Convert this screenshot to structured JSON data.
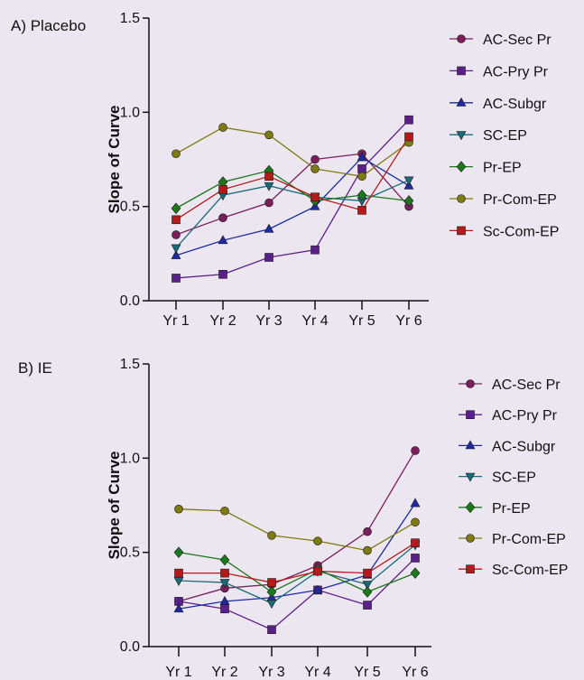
{
  "chart_data": [
    {
      "type": "line",
      "panel_label": "A) Placebo",
      "title": "",
      "xlabel": "",
      "ylabel": "Slope of Curve",
      "ylim": [
        0,
        1.5
      ],
      "yticks": [
        "0.0",
        "0.5",
        "1.0",
        "1.5"
      ],
      "categories": [
        "Yr 1",
        "Yr 2",
        "Yr 3",
        "Yr 4",
        "Yr 5",
        "Yr 6"
      ],
      "grid": false,
      "legend_position": "right",
      "series": [
        {
          "name": "AC-Sec Pr",
          "color": "#7a1f5c",
          "marker": "circle",
          "values": [
            0.35,
            0.44,
            0.52,
            0.75,
            0.78,
            0.5
          ]
        },
        {
          "name": "AC-Pry Pr",
          "color": "#5b1f8a",
          "marker": "square",
          "values": [
            0.12,
            0.14,
            0.23,
            0.27,
            0.7,
            0.96
          ]
        },
        {
          "name": "AC-Subgr",
          "color": "#1d2ba3",
          "marker": "triangle-up",
          "values": [
            0.24,
            0.32,
            0.38,
            0.5,
            0.76,
            0.61
          ]
        },
        {
          "name": "SC-EP",
          "color": "#1a6b7a",
          "marker": "triangle-down",
          "values": [
            0.28,
            0.56,
            0.61,
            0.55,
            0.53,
            0.64
          ]
        },
        {
          "name": "Pr-EP",
          "color": "#1a7a1a",
          "marker": "diamond",
          "values": [
            0.49,
            0.63,
            0.69,
            0.53,
            0.56,
            0.53
          ]
        },
        {
          "name": "Pr-Com-EP",
          "color": "#7d7a10",
          "marker": "circle",
          "values": [
            0.78,
            0.92,
            0.88,
            0.7,
            0.66,
            0.84
          ]
        },
        {
          "name": "Sc-Com-EP",
          "color": "#b51a1a",
          "marker": "square",
          "values": [
            0.43,
            0.59,
            0.66,
            0.55,
            0.48,
            0.87
          ]
        }
      ]
    },
    {
      "type": "line",
      "panel_label": "B) IE",
      "title": "",
      "xlabel": "",
      "ylabel": "Slope of Curve",
      "ylim": [
        0,
        1.5
      ],
      "yticks": [
        "0.0",
        "0.5",
        "1.0",
        "1.5"
      ],
      "categories": [
        "Yr 1",
        "Yr 2",
        "Yr 3",
        "Yr 4",
        "Yr 5",
        "Yr 6"
      ],
      "grid": false,
      "legend_position": "right",
      "series": [
        {
          "name": "AC-Sec Pr",
          "color": "#7a1f5c",
          "marker": "circle",
          "values": [
            0.24,
            0.31,
            0.33,
            0.43,
            0.61,
            1.04
          ]
        },
        {
          "name": "AC-Pry Pr",
          "color": "#5b1f8a",
          "marker": "square",
          "values": [
            0.24,
            0.2,
            0.09,
            0.3,
            0.22,
            0.47
          ]
        },
        {
          "name": "AC-Subgr",
          "color": "#1d2ba3",
          "marker": "triangle-up",
          "values": [
            0.2,
            0.24,
            0.26,
            0.3,
            0.38,
            0.76
          ]
        },
        {
          "name": "SC-EP",
          "color": "#1a6b7a",
          "marker": "triangle-down",
          "values": [
            0.35,
            0.34,
            0.23,
            0.4,
            0.33,
            0.54
          ]
        },
        {
          "name": "Pr-EP",
          "color": "#1a7a1a",
          "marker": "diamond",
          "values": [
            0.5,
            0.46,
            0.29,
            0.41,
            0.29,
            0.39
          ]
        },
        {
          "name": "Pr-Com-EP",
          "color": "#7d7a10",
          "marker": "circle",
          "values": [
            0.73,
            0.72,
            0.59,
            0.56,
            0.51,
            0.66
          ]
        },
        {
          "name": "Sc-Com-EP",
          "color": "#b51a1a",
          "marker": "square",
          "values": [
            0.39,
            0.39,
            0.34,
            0.4,
            0.39,
            0.55
          ]
        }
      ]
    }
  ]
}
